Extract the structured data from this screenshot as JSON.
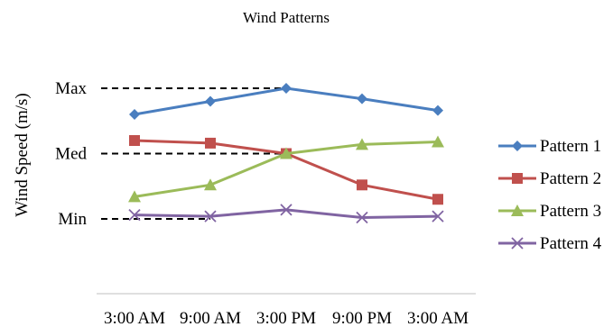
{
  "chart_data": {
    "type": "line",
    "title": "Wind Patterns",
    "ylabel": "Wind Speed (m/s)",
    "xlabel": "",
    "categories": [
      "3:00 AM",
      "9:00 AM",
      "3:00 PM",
      "9:00 PM",
      "3:00 AM"
    ],
    "y_ticks": [
      {
        "label": "Max",
        "value": 1.0
      },
      {
        "label": "Med",
        "value": 0.5
      },
      {
        "label": "Min",
        "value": 0.0
      }
    ],
    "ylim": [
      0,
      1
    ],
    "reference_lines": [
      {
        "tick": "Max",
        "value": 1.0,
        "x_end": 2
      },
      {
        "tick": "Med",
        "value": 0.5,
        "x_end": 2
      },
      {
        "tick": "Min",
        "value": 0.0,
        "x_end": 1
      }
    ],
    "legend_position": "right",
    "grid": false,
    "series": [
      {
        "name": "Pattern 1",
        "color": "#4a7ebf",
        "marker": "diamond",
        "values": [
          0.8,
          0.9,
          1.0,
          0.92,
          0.83
        ]
      },
      {
        "name": "Pattern 2",
        "color": "#c0504d",
        "marker": "square",
        "values": [
          0.6,
          0.58,
          0.5,
          0.26,
          0.15
        ]
      },
      {
        "name": "Pattern 3",
        "color": "#9bbb59",
        "marker": "triangle",
        "values": [
          0.17,
          0.26,
          0.5,
          0.57,
          0.59
        ]
      },
      {
        "name": "Pattern 4",
        "color": "#8064a2",
        "marker": "x",
        "values": [
          0.03,
          0.02,
          0.07,
          0.01,
          0.02
        ]
      }
    ]
  }
}
